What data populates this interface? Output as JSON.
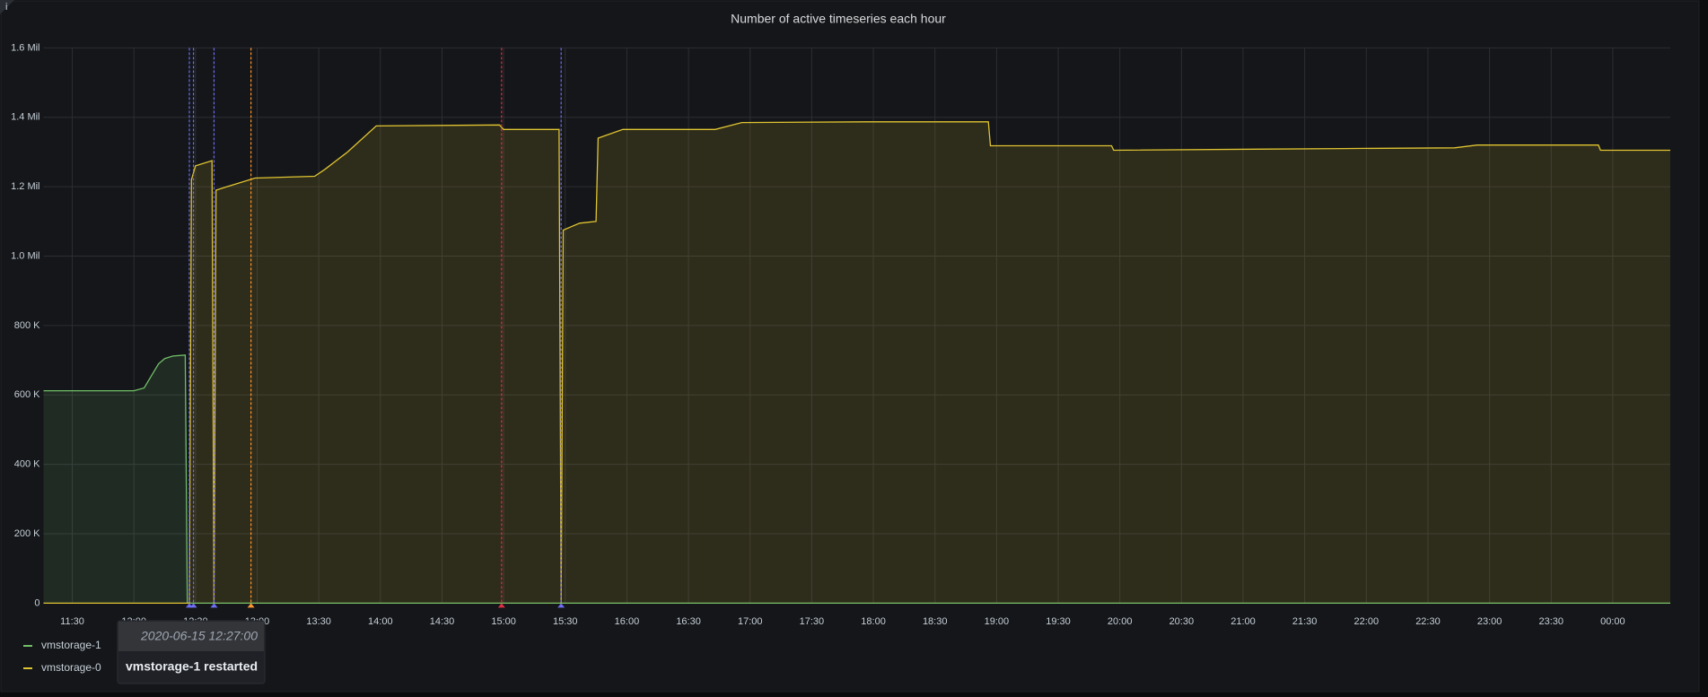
{
  "panel": {
    "info_icon": "i"
  },
  "chart_data": {
    "type": "line",
    "title": "Number of active timeseries each hour",
    "x": [
      "11:16",
      "12:00",
      "12:05",
      "12:09",
      "12:12",
      "12:15",
      "12:19",
      "12:25",
      "12:26",
      "12:27",
      "12:28",
      "12:30",
      "12:38",
      "12:39",
      "12:40",
      "12:48",
      "12:59",
      "13:28",
      "13:33",
      "13:44",
      "13:58",
      "14:58",
      "15:00",
      "15:27",
      "15:28",
      "15:29",
      "15:37",
      "15:45",
      "15:46",
      "15:58",
      "16:43",
      "16:56",
      "17:56",
      "18:56",
      "18:57",
      "19:56",
      "19:57",
      "21:48",
      "22:43",
      "22:54",
      "23:53",
      "23:54",
      "00:28"
    ],
    "series": [
      {
        "name": "vmstorage-1",
        "color": "#73bf69",
        "values": [
          612000,
          612000,
          620000,
          660000,
          690000,
          705000,
          712000,
          715000,
          0,
          0,
          0,
          0,
          0,
          0,
          0,
          0,
          0,
          0,
          0,
          0,
          0,
          0,
          0,
          0,
          0,
          0,
          0,
          0,
          0,
          0,
          0,
          0,
          0,
          0,
          0,
          0,
          0,
          0,
          0,
          0,
          0,
          0,
          0
        ]
      },
      {
        "name": "vmstorage-0",
        "color": "#e0c431",
        "values": [
          0,
          0,
          0,
          0,
          0,
          0,
          0,
          0,
          0,
          0,
          1220000,
          1260000,
          1275000,
          0,
          1190000,
          1205000,
          1225000,
          1230000,
          1250000,
          1300000,
          1375000,
          1378000,
          1365000,
          1365000,
          0,
          1075000,
          1095000,
          1100000,
          1340000,
          1365000,
          1365000,
          1385000,
          1387000,
          1387000,
          1318000,
          1318000,
          1305000,
          1310000,
          1312000,
          1320000,
          1320000,
          1305000,
          1305000
        ]
      }
    ],
    "xlim": [
      "11:16",
      "00:28"
    ],
    "xticks": [
      "11:30",
      "12:00",
      "12:30",
      "13:00",
      "13:30",
      "14:00",
      "14:30",
      "15:00",
      "15:30",
      "16:00",
      "16:30",
      "17:00",
      "17:30",
      "18:00",
      "18:30",
      "19:00",
      "19:30",
      "20:00",
      "20:30",
      "21:00",
      "21:30",
      "22:00",
      "22:30",
      "23:00",
      "23:30",
      "00:00"
    ],
    "ylim": [
      0,
      1600000
    ],
    "yticks": [
      0,
      {
        "value": 200000,
        "label": "200 K"
      },
      {
        "value": 400000,
        "label": "400 K"
      },
      {
        "value": 600000,
        "label": "600 K"
      },
      {
        "value": 800000,
        "label": "800 K"
      },
      {
        "value": 1000000,
        "label": "1.0 Mil"
      },
      {
        "value": 1200000,
        "label": "1.2 Mil"
      },
      {
        "value": 1400000,
        "label": "1.4 Mil"
      },
      {
        "value": 1600000,
        "label": "1.6 Mil"
      }
    ],
    "grid": true,
    "legend": "bottom-left",
    "annotations": [
      {
        "x": "12:27",
        "color": "#6e6ef5",
        "time": "2020-06-15 12:27:00",
        "text": "vmstorage-1 restarted"
      },
      {
        "x": "12:29",
        "color": "#6e6ef5"
      },
      {
        "x": "12:39",
        "color": "#6e6ef5"
      },
      {
        "x": "12:57",
        "color": "#ff9830"
      },
      {
        "x": "14:59",
        "color": "#e02f44"
      },
      {
        "x": "15:28",
        "color": "#6e6ef5"
      }
    ]
  }
}
